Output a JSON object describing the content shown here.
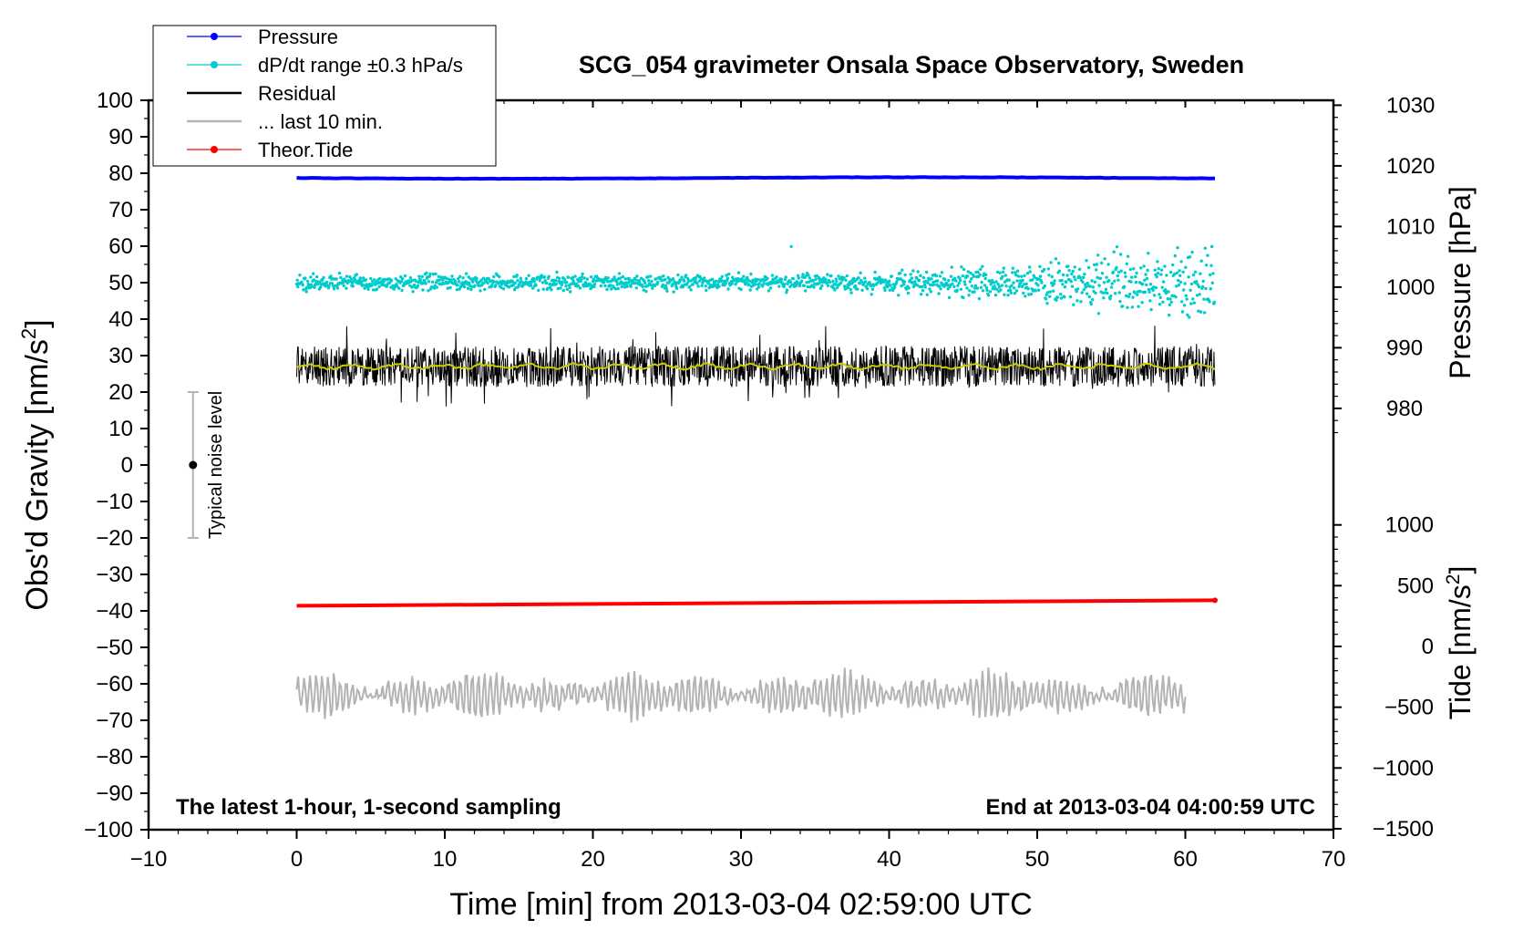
{
  "chart_data": {
    "type": "line",
    "title": "SCG_054 gravimeter Onsala Space Observatory, Sweden",
    "xlabel": "Time [min] from 2013-03-04 02:59:00 UTC",
    "ylabel_left": "Obs'd Gravity [nm/s",
    "ylabel_left_sup": "2",
    "ylabel_left_tail": "]",
    "ylabel_right_pressure": "Pressure [hPa]",
    "ylabel_right_tide": "Tide [nm/s",
    "ylabel_right_tide_sup": "2",
    "ylabel_right_tide_tail": "]",
    "xlim": [
      -10,
      70
    ],
    "ylim": [
      -100,
      100
    ],
    "x_ticks": [
      "−10",
      "0",
      "10",
      "20",
      "30",
      "40",
      "50",
      "60",
      "70"
    ],
    "y_ticks": [
      "100",
      "90",
      "80",
      "70",
      "60",
      "50",
      "40",
      "30",
      "20",
      "10",
      "0",
      "−10",
      "−20",
      "−30",
      "−40",
      "−50",
      "−60",
      "−70",
      "−80",
      "−90",
      "−100"
    ],
    "pressure_axis": {
      "range_hpa": [
        970,
        1030
      ],
      "ticks": [
        "1030",
        "1020",
        "1010",
        "1000",
        "990",
        "980"
      ]
    },
    "tide_axis": {
      "range": [
        -1500,
        1000
      ],
      "ticks": [
        "1000",
        "500",
        "0",
        "−500",
        "−1000",
        "−1500"
      ]
    },
    "legend": [
      {
        "label": "Pressure",
        "color": "#0000ff",
        "marker": "dot-line"
      },
      {
        "label": "dP/dt range ±0.3 hPa/s",
        "color": "#00cccc",
        "marker": "dot-line"
      },
      {
        "label": "Residual",
        "color": "#000000",
        "marker": "line"
      },
      {
        "label": "... last 10 min.",
        "color": "#b3b3b3",
        "marker": "line"
      },
      {
        "label": "Theor.Tide",
        "color": "#ff0000",
        "marker": "dot-line"
      }
    ],
    "series": [
      {
        "name": "Pressure",
        "color": "#0000ff",
        "x_range": [
          0,
          62
        ],
        "plot_level": 78.7,
        "description": "nearly constant"
      },
      {
        "name": "dP/dt",
        "color": "#00cccc",
        "x_range": [
          0,
          62
        ],
        "center": 50,
        "spread_start": 1.0,
        "spread_end": 5.0
      },
      {
        "name": "Residual",
        "color": "#000000",
        "x_range": [
          0,
          62
        ],
        "center": 27,
        "amplitude": 6
      },
      {
        "name": "Residual smoothed",
        "color": "#cccc00",
        "x_range": [
          0,
          62
        ],
        "center": 27
      },
      {
        "name": "... last 10 min.",
        "color": "#b3b3b3",
        "x_range": [
          0,
          60
        ],
        "center": -63,
        "amplitude": 6
      },
      {
        "name": "Theor.Tide",
        "color": "#ff0000",
        "x_range": [
          0,
          62
        ],
        "y_start": -38.6,
        "y_end": -37.1
      }
    ],
    "noise_bar": {
      "x": -7,
      "y": 0,
      "low": -20,
      "high": 20,
      "label": "Typical noise level"
    },
    "annotation_left": "The latest 1-hour, 1-second sampling",
    "annotation_right": "End at 2013-03-04 04:00:59 UTC",
    "colors": {
      "pressure": "#0000ff",
      "dpdt": "#00cccc",
      "residual": "#000000",
      "smooth": "#cccc00",
      "last10": "#b3b3b3",
      "tide": "#ff0000"
    }
  }
}
